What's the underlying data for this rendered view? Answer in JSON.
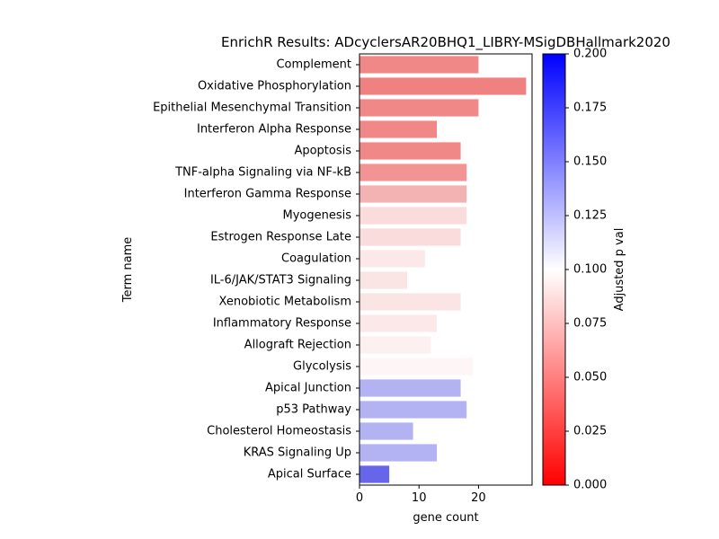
{
  "chart_data": {
    "type": "bar",
    "orientation": "horizontal",
    "title": "EnrichR Results: ADcyclersAR20BHQ1_LIBRY-MSigDBHallmark2020",
    "xlabel": "gene count",
    "ylabel": "Term name",
    "xlim": [
      0,
      29
    ],
    "xticks": [
      0,
      10,
      20
    ],
    "categories": [
      "Complement",
      "Oxidative Phosphorylation",
      "Epithelial Mesenchymal Transition",
      "Interferon Alpha Response",
      "Apoptosis",
      "TNF-alpha Signaling via NF-kB",
      "Interferon Gamma Response",
      "Myogenesis",
      "Estrogen Response Late",
      "Coagulation",
      "IL-6/JAK/STAT3 Signaling",
      "Xenobiotic Metabolism",
      "Inflammatory Response",
      "Allograft Rejection",
      "Glycolysis",
      "Apical Junction",
      "p53 Pathway",
      "Cholesterol Homeostasis",
      "KRAS Signaling Up",
      "Apical Surface"
    ],
    "values": [
      20,
      28,
      20,
      13,
      17,
      18,
      18,
      18,
      17,
      11,
      8,
      17,
      13,
      12,
      19,
      17,
      18,
      9,
      13,
      5
    ],
    "colors": [
      "#f08888",
      "#ef8181",
      "#f08888",
      "#f08888",
      "#f08888",
      "#f29494",
      "#f4b3b3",
      "#fadcdc",
      "#fadcdc",
      "#fce8e8",
      "#fbe4e4",
      "#fbe4e4",
      "#fce8e8",
      "#fdf0f0",
      "#fef6f6",
      "#b3b3f3",
      "#b3b3f3",
      "#b3b3f3",
      "#b3b3f3",
      "#6666ea"
    ],
    "colorbar": {
      "label": "Adjusted p val",
      "range": [
        0,
        0.2
      ],
      "ticks": [
        "0.000",
        "0.025",
        "0.050",
        "0.075",
        "0.100",
        "0.125",
        "0.150",
        "0.175",
        "0.200"
      ],
      "colormap": [
        "#ff0000",
        "#ffffff",
        "#0000ff"
      ]
    }
  }
}
